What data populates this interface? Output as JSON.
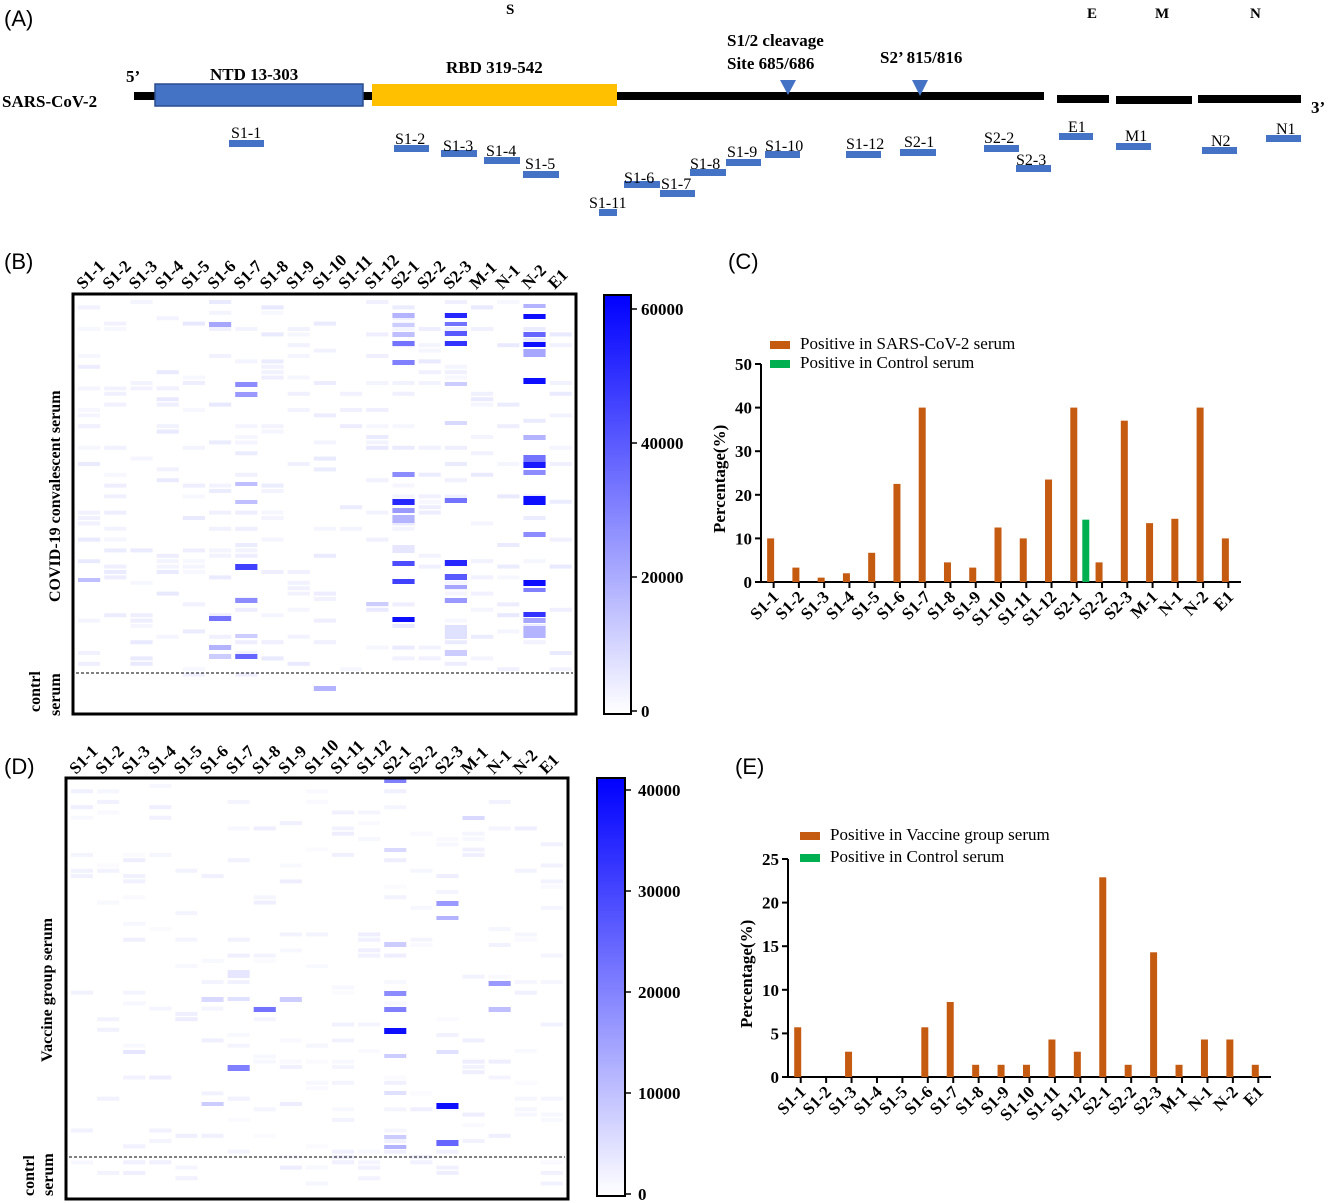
{
  "panel_labels": [
    "(A)",
    "(B)",
    "(C)",
    "(D)",
    "(E)"
  ],
  "genome": {
    "organism": "SARS-CoV-2",
    "five_prime": "5’",
    "three_prime": "3’",
    "ntd_label": "NTD 13-303",
    "rbd_label": "RBD 319-542",
    "cleavage_line1": "S1/2 cleavage",
    "cleavage_line2": "Site 685/686",
    "s2_label": "S2’ 815/816",
    "gene_labels": [
      "S",
      "E",
      "M",
      "N"
    ],
    "peptides": [
      "S1-1",
      "S1-2",
      "S1-3",
      "S1-4",
      "S1-5",
      "S1-6",
      "S1-7",
      "S1-8",
      "S1-9",
      "S1-10",
      "S1-11",
      "S1-12",
      "S2-1",
      "S2-2",
      "S2-3",
      "E1",
      "M1",
      "N2",
      "N1"
    ],
    "colors": {
      "ntd": "#4472c4",
      "rbd": "#ffc000",
      "peptide": "#4472c4",
      "backbone": "#000000"
    }
  },
  "heatmap_b": {
    "columns": [
      "S1-1",
      "S1-2",
      "S1-3",
      "S1-4",
      "S1-5",
      "S1-6",
      "S1-7",
      "S1-8",
      "S1-9",
      "S1-10",
      "S1-11",
      "S1-12",
      "S2-1",
      "S2-2",
      "S2-3",
      "M-1",
      "N-1",
      "N-2",
      "E1"
    ],
    "ylabel_main": "COVID-19 convalescent serum",
    "ylabel_control_1": "contrl",
    "ylabel_control_2": "serum",
    "colorbar_ticks": [
      "0",
      "20000",
      "40000",
      "60000"
    ],
    "max_color": "#0000ff"
  },
  "heatmap_d": {
    "columns": [
      "S1-1",
      "S1-2",
      "S1-3",
      "S1-4",
      "S1-5",
      "S1-6",
      "S1-7",
      "S1-8",
      "S1-9",
      "S1-10",
      "S1-11",
      "S1-12",
      "S2-1",
      "S2-2",
      "S2-3",
      "M-1",
      "N-1",
      "N-2",
      "E1"
    ],
    "ylabel_main": "Vaccine group serum",
    "ylabel_control_1": "contrl",
    "ylabel_control_2": "serum",
    "colorbar_ticks": [
      "0",
      "10000",
      "20000",
      "30000",
      "40000"
    ],
    "max_color": "#0000ff"
  },
  "chart_data": [
    {
      "type": "bar",
      "panel": "C",
      "categories": [
        "S1-1",
        "S1-2",
        "S1-3",
        "S1-4",
        "S1-5",
        "S1-6",
        "S1-7",
        "S1-8",
        "S1-9",
        "S1-10",
        "S1-11",
        "S1-12",
        "S2-1",
        "S2-2",
        "S2-3",
        "M-1",
        "N-1",
        "N-2",
        "E1"
      ],
      "series": [
        {
          "name": "Positive in SARS-CoV-2 serum",
          "color": "#c55a11",
          "values": [
            10,
            3.3,
            1,
            2,
            6.7,
            22.5,
            40,
            4.5,
            3.3,
            12.5,
            10,
            23.5,
            40,
            4.5,
            37,
            13.5,
            14.5,
            40,
            10
          ]
        },
        {
          "name": "Positive in Control serum",
          "color": "#00b050",
          "values": [
            0,
            0,
            0,
            0,
            0,
            0,
            0,
            0,
            0,
            0,
            0,
            0,
            14.3,
            0,
            0,
            0,
            0,
            0,
            0
          ]
        }
      ],
      "ylabel": "Percentage(%)",
      "yticks": [
        0,
        10,
        20,
        30,
        40,
        50
      ],
      "ylim": [
        0,
        50
      ],
      "legend_position": "top-left"
    },
    {
      "type": "bar",
      "panel": "E",
      "categories": [
        "S1-1",
        "S1-2",
        "S1-3",
        "S1-4",
        "S1-5",
        "S1-6",
        "S1-7",
        "S1-8",
        "S1-9",
        "S1-10",
        "S1-11",
        "S1-12",
        "S2-1",
        "S2-2",
        "S2-3",
        "M-1",
        "N-1",
        "N-2",
        "E1"
      ],
      "series": [
        {
          "name": "Positive in Vaccine group serum",
          "color": "#c55a11",
          "values": [
            5.7,
            0,
            2.9,
            0,
            0,
            5.7,
            8.6,
            1.4,
            1.4,
            1.4,
            4.3,
            2.9,
            22.9,
            1.4,
            14.3,
            1.4,
            4.3,
            4.3,
            1.4
          ]
        },
        {
          "name": "Positive in Control serum",
          "color": "#00b050",
          "values": [
            0,
            0,
            0,
            0,
            0,
            0,
            0,
            0,
            0,
            0,
            0,
            0,
            0,
            0,
            0,
            0,
            0,
            0,
            0
          ]
        }
      ],
      "ylabel": "Percentage(%)",
      "yticks": [
        0,
        5,
        10,
        15,
        20,
        25
      ],
      "ylim": [
        0,
        25
      ],
      "legend_position": "top-left"
    }
  ]
}
